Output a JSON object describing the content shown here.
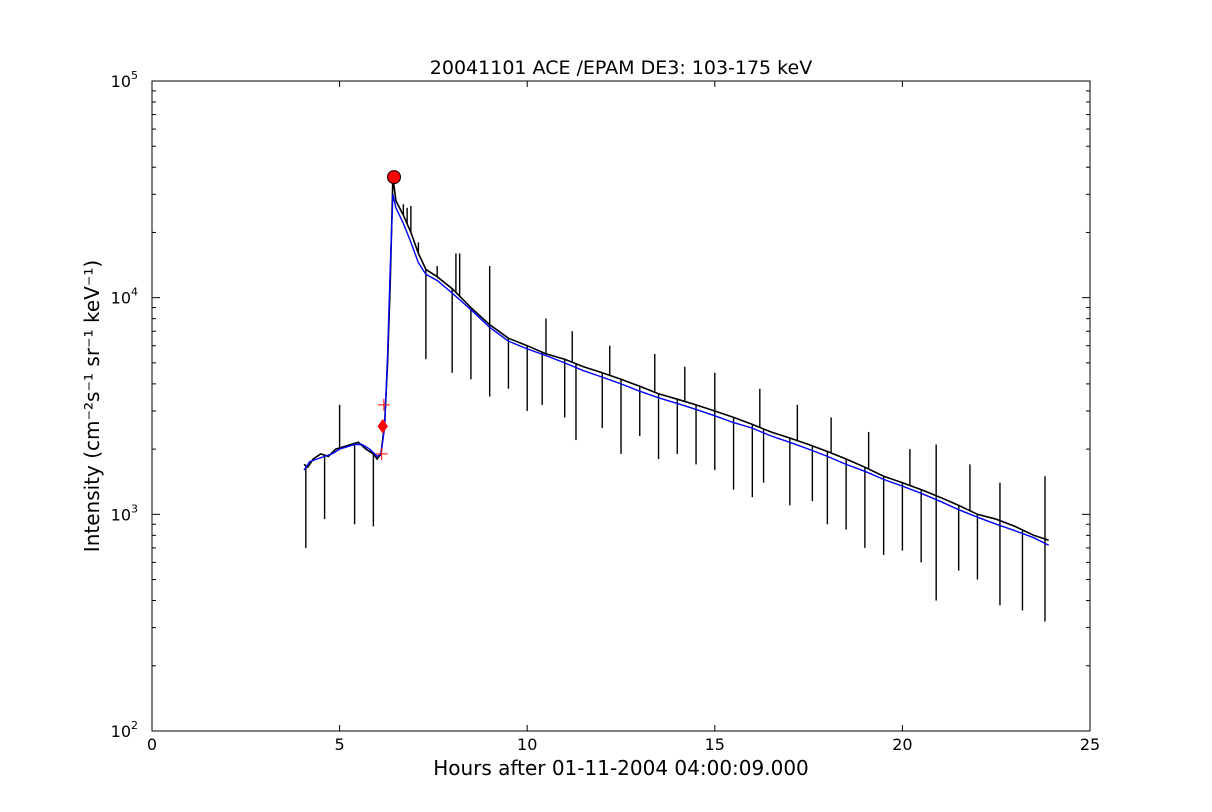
{
  "chart_data": {
    "type": "line",
    "title": "20041101 ACE /EPAM DE3: 103-175 keV",
    "xlabel": "Hours after 01-11-2004 04:00:09.000",
    "ylabel": "Intensity (cm⁻²s⁻¹ sr⁻¹ keV⁻¹)",
    "xlim": [
      0,
      25
    ],
    "ylim": [
      100,
      100000
    ],
    "yscale": "log",
    "grid": false,
    "x_ticks": [
      {
        "value": 0,
        "label": "0"
      },
      {
        "value": 5,
        "label": "5"
      },
      {
        "value": 10,
        "label": "10"
      },
      {
        "value": 15,
        "label": "15"
      },
      {
        "value": 20,
        "label": "20"
      },
      {
        "value": 25,
        "label": "25"
      }
    ],
    "y_ticks": [
      {
        "value": 100,
        "base": "10",
        "exp": "2"
      },
      {
        "value": 1000,
        "base": "10",
        "exp": "3"
      },
      {
        "value": 10000,
        "base": "10",
        "exp": "4"
      },
      {
        "value": 100000,
        "base": "10",
        "exp": "5"
      }
    ],
    "series": [
      {
        "color": "#000000",
        "kind": "raw",
        "x": [
          4.05,
          4.15,
          4.3,
          4.5,
          4.7,
          4.9,
          5.1,
          5.3,
          5.5,
          5.7,
          5.9,
          6.0,
          6.1,
          6.2,
          6.28,
          6.35,
          6.42,
          6.5,
          6.7,
          6.9,
          7.1,
          7.3,
          7.6,
          8.0,
          8.5,
          9.0,
          9.5,
          10.0,
          10.5,
          11.0,
          11.5,
          12.0,
          12.5,
          13.0,
          13.5,
          14.0,
          14.5,
          15.0,
          15.5,
          16.0,
          16.5,
          17.0,
          17.5,
          18.0,
          18.5,
          19.0,
          19.5,
          20.0,
          20.5,
          21.0,
          21.5,
          22.0,
          22.5,
          23.0,
          23.5,
          23.9
        ],
        "y": [
          1700,
          1650,
          1800,
          1900,
          1850,
          2000,
          2050,
          2100,
          2150,
          2000,
          1900,
          1800,
          1900,
          2600,
          5000,
          12000,
          36000,
          28000,
          24000,
          20000,
          16000,
          13500,
          12500,
          11000,
          9000,
          7500,
          6500,
          6000,
          5500,
          5200,
          4800,
          4500,
          4200,
          3900,
          3600,
          3400,
          3200,
          3000,
          2800,
          2600,
          2400,
          2250,
          2100,
          1950,
          1800,
          1650,
          1500,
          1400,
          1300,
          1200,
          1100,
          1000,
          950,
          880,
          800,
          760
        ],
        "spikes": [
          {
            "x": 4.1,
            "y": 700
          },
          {
            "x": 4.6,
            "y": 950
          },
          {
            "x": 5.4,
            "y": 900
          },
          {
            "x": 5.9,
            "y": 880
          },
          {
            "x": 6.7,
            "y": 27000
          },
          {
            "x": 6.9,
            "y": 26500
          },
          {
            "x": 7.3,
            "y": 5200
          },
          {
            "x": 7.6,
            "y": 14000
          },
          {
            "x": 8.0,
            "y": 4500
          },
          {
            "x": 8.1,
            "y": 16000
          },
          {
            "x": 8.5,
            "y": 4200
          },
          {
            "x": 9.0,
            "y": 3500
          },
          {
            "x": 9.5,
            "y": 3800
          },
          {
            "x": 10.0,
            "y": 3000
          },
          {
            "x": 10.4,
            "y": 3200
          },
          {
            "x": 11.0,
            "y": 2800
          },
          {
            "x": 11.3,
            "y": 2200
          },
          {
            "x": 12.0,
            "y": 2500
          },
          {
            "x": 12.5,
            "y": 1900
          },
          {
            "x": 13.0,
            "y": 2300
          },
          {
            "x": 13.5,
            "y": 1800
          },
          {
            "x": 14.0,
            "y": 1900
          },
          {
            "x": 14.5,
            "y": 1700
          },
          {
            "x": 15.0,
            "y": 1600
          },
          {
            "x": 15.5,
            "y": 1300
          },
          {
            "x": 16.0,
            "y": 1200
          },
          {
            "x": 16.3,
            "y": 1400
          },
          {
            "x": 17.0,
            "y": 1100
          },
          {
            "x": 17.6,
            "y": 1150
          },
          {
            "x": 18.0,
            "y": 900
          },
          {
            "x": 18.5,
            "y": 850
          },
          {
            "x": 19.0,
            "y": 700
          },
          {
            "x": 19.5,
            "y": 650
          },
          {
            "x": 20.0,
            "y": 680
          },
          {
            "x": 20.5,
            "y": 600
          },
          {
            "x": 20.9,
            "y": 400
          },
          {
            "x": 21.5,
            "y": 550
          },
          {
            "x": 22.0,
            "y": 500
          },
          {
            "x": 22.6,
            "y": 380
          },
          {
            "x": 23.2,
            "y": 360
          },
          {
            "x": 23.8,
            "y": 320
          }
        ],
        "up_spikes": [
          {
            "x": 5.0,
            "y": 3200
          },
          {
            "x": 6.8,
            "y": 26000
          },
          {
            "x": 7.1,
            "y": 18000
          },
          {
            "x": 8.2,
            "y": 16000
          },
          {
            "x": 9.0,
            "y": 14000
          },
          {
            "x": 10.5,
            "y": 8000
          },
          {
            "x": 11.2,
            "y": 7000
          },
          {
            "x": 12.2,
            "y": 6000
          },
          {
            "x": 13.4,
            "y": 5500
          },
          {
            "x": 14.2,
            "y": 4800
          },
          {
            "x": 15.0,
            "y": 4500
          },
          {
            "x": 16.2,
            "y": 3800
          },
          {
            "x": 17.2,
            "y": 3200
          },
          {
            "x": 18.1,
            "y": 2800
          },
          {
            "x": 19.1,
            "y": 2400
          },
          {
            "x": 20.2,
            "y": 2000
          },
          {
            "x": 20.9,
            "y": 2100
          },
          {
            "x": 21.8,
            "y": 1700
          },
          {
            "x": 22.6,
            "y": 1400
          },
          {
            "x": 23.8,
            "y": 1500
          }
        ]
      },
      {
        "color": "#0000ff",
        "kind": "smoothed",
        "x": [
          4.05,
          4.2,
          4.4,
          4.6,
          4.8,
          5.0,
          5.2,
          5.4,
          5.6,
          5.8,
          6.0,
          6.1,
          6.2,
          6.28,
          6.35,
          6.42,
          6.5,
          6.7,
          6.9,
          7.1,
          7.3,
          7.6,
          8.0,
          8.5,
          9.0,
          9.5,
          10.0,
          10.5,
          11.0,
          11.5,
          12.0,
          12.5,
          13.0,
          13.5,
          14.0,
          14.5,
          15.0,
          15.5,
          16.0,
          16.5,
          17.0,
          17.5,
          18.0,
          18.5,
          19.0,
          19.5,
          20.0,
          20.5,
          21.0,
          21.5,
          22.0,
          22.5,
          23.0,
          23.5,
          23.9
        ],
        "y": [
          1600,
          1750,
          1800,
          1850,
          1900,
          2000,
          2050,
          2100,
          2100,
          2000,
          1850,
          1900,
          2500,
          5500,
          14000,
          30000,
          26000,
          22000,
          18000,
          14500,
          12800,
          12000,
          10500,
          8800,
          7300,
          6300,
          5800,
          5400,
          5000,
          4600,
          4300,
          4000,
          3700,
          3450,
          3250,
          3050,
          2850,
          2650,
          2500,
          2300,
          2150,
          2000,
          1850,
          1700,
          1580,
          1450,
          1350,
          1250,
          1150,
          1050,
          970,
          900,
          840,
          780,
          720
        ]
      }
    ],
    "markers": [
      {
        "shape": "circle",
        "color": "#ff0000",
        "x": 6.45,
        "y": 36000
      },
      {
        "shape": "diamond",
        "color": "#ff0000",
        "x": 6.15,
        "y": 2550
      },
      {
        "shape": "plus",
        "color": "#ff0000",
        "x": 6.18,
        "y": 3200
      },
      {
        "shape": "plus",
        "color": "#ff0000",
        "x": 6.12,
        "y": 1900
      }
    ]
  }
}
